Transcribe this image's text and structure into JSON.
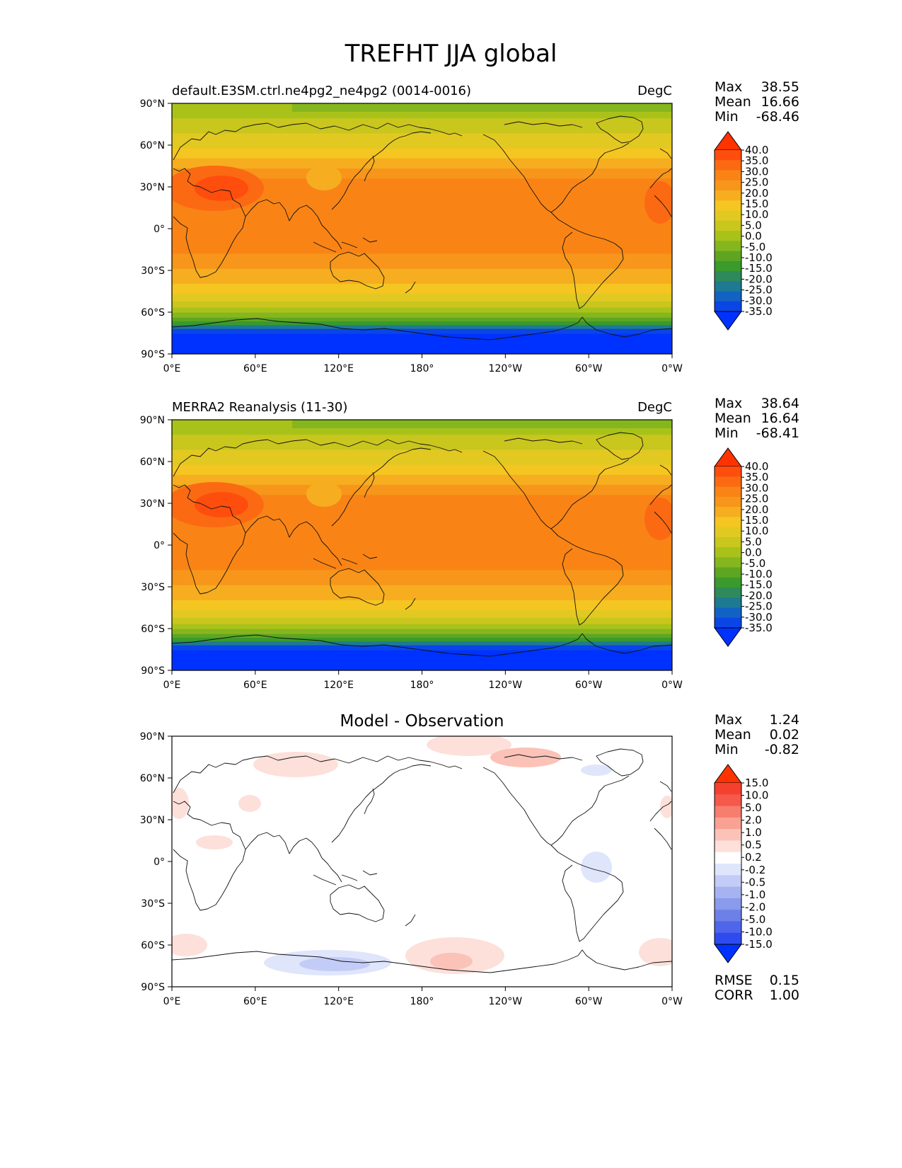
{
  "figure": {
    "title": "TREFHT JJA global"
  },
  "axes": {
    "lat_ticks": [
      "90°N",
      "60°N",
      "30°N",
      "0°",
      "30°S",
      "60°S",
      "90°S"
    ],
    "lon_ticks": [
      "0°E",
      "60°E",
      "120°E",
      "180°",
      "120°W",
      "60°W",
      "0°W"
    ]
  },
  "panels": [
    {
      "title_left": "default.E3SM.ctrl.ne4pg2_ne4pg2 (0014-0016)",
      "title_right": "DegC",
      "stats": {
        "max_label": "Max",
        "max": "38.55",
        "mean_label": "Mean",
        "mean": "16.66",
        "min_label": "Min",
        "min": "-68.46"
      },
      "colorbar_ticks": [
        "40.0",
        "35.0",
        "30.0",
        "25.0",
        "20.0",
        "15.0",
        "10.0",
        "5.0",
        "0.0",
        "-5.0",
        "-10.0",
        "-15.0",
        "-20.0",
        "-25.0",
        "-30.0",
        "-35.0"
      ]
    },
    {
      "title_left": "MERRA2 Reanalysis (11-30)",
      "title_right": "DegC",
      "stats": {
        "max_label": "Max",
        "max": "38.64",
        "mean_label": "Mean",
        "mean": "16.64",
        "min_label": "Min",
        "min": "-68.41"
      },
      "colorbar_ticks": [
        "40.0",
        "35.0",
        "30.0",
        "25.0",
        "20.0",
        "15.0",
        "10.0",
        "5.0",
        "0.0",
        "-5.0",
        "-10.0",
        "-15.0",
        "-20.0",
        "-25.0",
        "-30.0",
        "-35.0"
      ]
    },
    {
      "title_center": "Model - Observation",
      "stats": {
        "max_label": "Max",
        "max": "1.24",
        "mean_label": "Mean",
        "mean": "0.02",
        "min_label": "Min",
        "min": "-0.82",
        "rmse_label": "RMSE",
        "rmse": "0.15",
        "corr_label": "CORR",
        "corr": "1.00"
      },
      "colorbar_ticks": [
        "15.0",
        "10.0",
        "5.0",
        "2.0",
        "1.0",
        "0.5",
        "0.2",
        "-0.2",
        "-0.5",
        "-1.0",
        "-2.0",
        "-5.0",
        "-10.0",
        "-15.0"
      ]
    }
  ],
  "colors": {
    "temperature_scale": [
      "#ff3300",
      "#ff4d0d",
      "#fb6a12",
      "#f98415",
      "#f7961a",
      "#f6ad1f",
      "#f5c521",
      "#e2c922",
      "#c9c61e",
      "#a9c21a",
      "#86b61e",
      "#5ea622",
      "#3a9a2b",
      "#2e8a5a",
      "#1d7a92",
      "#1262c4",
      "#0a45e6",
      "#0032ff"
    ],
    "difference_scale": [
      "#ff3300",
      "#f54030",
      "#f5594a",
      "#f77d6e",
      "#f9a193",
      "#fbc2b8",
      "#fde0da",
      "#ffffff",
      "#dfe5fb",
      "#c3ccf6",
      "#a7b3f1",
      "#8a9aec",
      "#6d80e8",
      "#4f66ea",
      "#2f4bf0",
      "#0032ff"
    ]
  }
}
